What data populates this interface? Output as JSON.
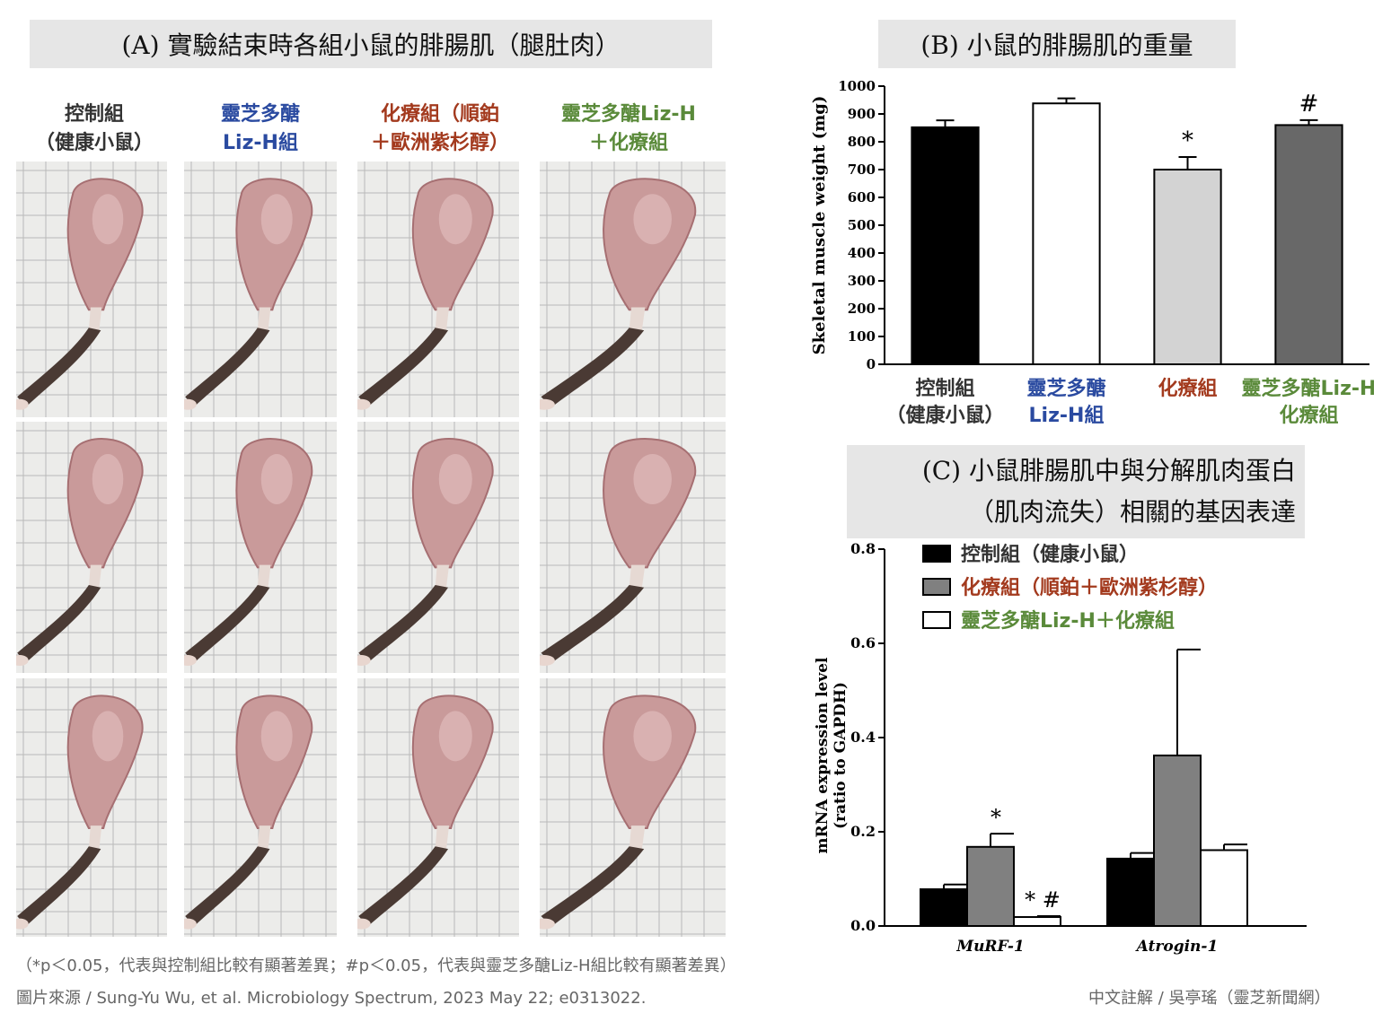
{
  "panel_a": {
    "title": "(A) 實驗結束時各組小鼠的腓腸肌（腿肚肉）",
    "groups": [
      {
        "line1": "控制組",
        "line2": "（健康小鼠）",
        "color": "#333333"
      },
      {
        "line1": "靈芝多醣",
        "line2": "Liz-H組",
        "color": "#2a4aa0"
      },
      {
        "line1": "化療組（順鉑",
        "line2": "＋歐洲紫杉醇）",
        "color": "#a33a1e"
      },
      {
        "line1": "靈芝多醣Liz-H",
        "line2": "＋化療組",
        "color": "#5a8a3a"
      }
    ],
    "photo_colors": {
      "grid_bg": "#ececea",
      "grid_line": "#b9b9b9",
      "muscle": "#c99a9a",
      "muscle_dark": "#a66f72",
      "tendon": "#e6d9d3",
      "paw": "#4a3a34"
    }
  },
  "panel_b": {
    "title": "(B) 小鼠的腓腸肌的重量",
    "chart_data": {
      "type": "bar",
      "ylabel": "Skeletal muscle weight (mg)",
      "ylim": [
        0,
        1000
      ],
      "yticks": [
        0,
        100,
        200,
        300,
        400,
        500,
        600,
        700,
        800,
        900,
        1000
      ],
      "categories": [
        {
          "line1": "控制組",
          "line2": "（健康小鼠）",
          "color": "#333333"
        },
        {
          "line1": "靈芝多醣",
          "line2": "Liz-H組",
          "color": "#2a4aa0"
        },
        {
          "line1": "化療組",
          "line2": "",
          "color": "#a33a1e"
        },
        {
          "line1": "靈芝多醣Liz-H",
          "line2": "化療組",
          "color": "#5a8a3a"
        }
      ],
      "values": [
        852,
        938,
        700,
        860
      ],
      "errors": [
        25,
        18,
        45,
        18
      ],
      "fills": [
        "#000000",
        "#ffffff",
        "#d3d3d3",
        "#686868"
      ],
      "annotations": [
        "",
        "",
        "*",
        "#"
      ]
    }
  },
  "panel_c": {
    "title_line1": "(C) 小鼠腓腸肌中與分解肌肉蛋白",
    "title_line2": "（肌肉流失）相關的基因表達",
    "chart_data": {
      "type": "bar",
      "ylabel_line1": "mRNA expression level",
      "ylabel_line2": "(ratio to GAPDH)",
      "ylim": [
        0,
        0.8
      ],
      "yticks": [
        "0.0",
        "0.2",
        "0.4",
        "0.6",
        "0.8"
      ],
      "categories": [
        "MuRF-1",
        "Atrogin-1"
      ],
      "series": [
        {
          "name": "控制組（健康小鼠）",
          "values": [
            0.078,
            0.143
          ],
          "errors": [
            0.01,
            0.012
          ],
          "fill": "#000000",
          "label_color": "#333333",
          "annotations": [
            "",
            ""
          ]
        },
        {
          "name": "化療組（順鉑＋歐洲紫杉醇）",
          "values": [
            0.168,
            0.362
          ],
          "errors": [
            0.028,
            0.225
          ],
          "fill": "#808080",
          "label_color": "#a33a1e",
          "annotations": [
            "*",
            ""
          ]
        },
        {
          "name": "靈芝多醣Liz-H＋化療組",
          "values": [
            0.019,
            0.161
          ],
          "errors": [
            0.002,
            0.012
          ],
          "fill": "#ffffff",
          "label_color": "#5a8a3a",
          "annotations": [
            "* #",
            ""
          ]
        }
      ]
    }
  },
  "footnote_1": "（*p＜0.05，代表與控制組比較有顯著差異；#p＜0.05，代表與靈芝多醣Liz-H組比較有顯著差異）",
  "footnote_2": "圖片來源 / Sung-Yu Wu, et al. Microbiology Spectrum, 2023 May 22; e0313022.",
  "footnote_3": "中文註解 / 吳亭瑤（靈芝新聞網）"
}
